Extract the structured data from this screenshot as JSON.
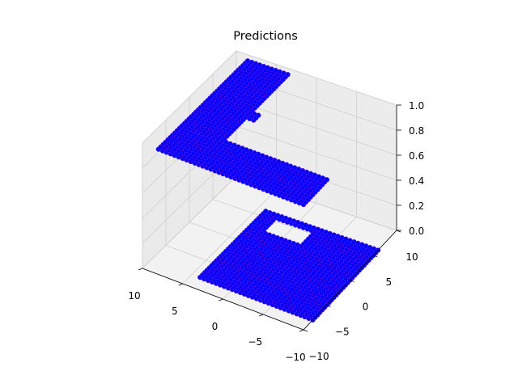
{
  "chart_data": {
    "type": "scatter3d",
    "title": "Predictions",
    "xlabel": "",
    "ylabel": "",
    "zlabel": "",
    "xlim": [
      10,
      -10
    ],
    "ylim": [
      -10,
      10
    ],
    "zlim": [
      0,
      1
    ],
    "grid": true,
    "legend": "none",
    "x_ticks": [
      "10",
      "5",
      "0",
      "−5",
      "−10"
    ],
    "y_ticks": [
      "−10",
      "−5",
      "0",
      "5",
      "10"
    ],
    "z_ticks": [
      "0.0",
      "0.2",
      "0.4",
      "0.6",
      "0.8",
      "1.0"
    ],
    "point_color": "#0000ff",
    "edge_color": "#7a1fd6",
    "series": [
      {
        "regions": [
          {
            "z": 1,
            "x": [
              -10,
              8
            ],
            "y": [
              -10,
              -5
            ]
          },
          {
            "z": 1,
            "x": [
              3,
              8
            ],
            "y": [
              -5,
              9
            ]
          },
          {
            "z": 1,
            "x": [
              2,
              3
            ],
            "y": [
              0,
              1
            ]
          },
          {
            "z": 0,
            "x": [
              -10,
              4
            ],
            "y": [
              -8,
              6
            ]
          }
        ],
        "holes": [
          {
            "z": 0,
            "x": [
              -2,
              2
            ],
            "y": [
              3,
              5
            ]
          }
        ]
      }
    ]
  }
}
